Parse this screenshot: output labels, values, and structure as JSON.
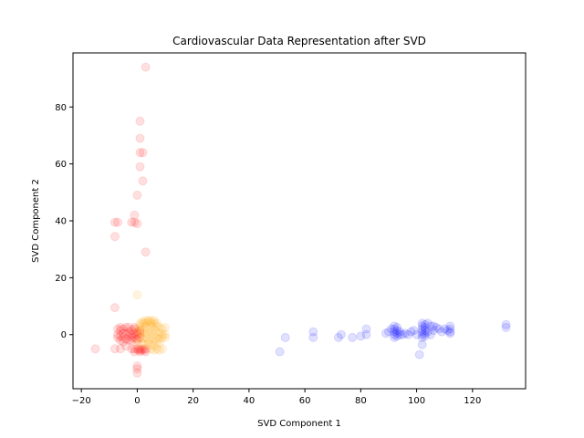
{
  "chart_data": {
    "type": "scatter",
    "title": "Cardiovascular Data Representation after SVD",
    "xlabel": "SVD Component 1",
    "ylabel": "SVD Component 2",
    "xlim": [
      -23,
      139
    ],
    "ylim": [
      -19,
      99
    ],
    "xticks": [
      -20,
      0,
      20,
      40,
      60,
      80,
      100,
      120
    ],
    "yticks": [
      0,
      20,
      40,
      60,
      80
    ],
    "grid": false,
    "series": [
      {
        "color": "#ff0000",
        "alpha": 0.12,
        "points": [
          [
            3,
            94
          ],
          [
            1,
            75
          ],
          [
            1,
            69
          ],
          [
            1,
            64
          ],
          [
            2,
            64
          ],
          [
            1,
            59
          ],
          [
            2,
            54
          ],
          [
            0,
            49
          ],
          [
            -1,
            42
          ],
          [
            -8,
            39.5
          ],
          [
            -7,
            39.5
          ],
          [
            -2,
            39.5
          ],
          [
            -1,
            39.5
          ],
          [
            0,
            39
          ],
          [
            -8,
            34.5
          ],
          [
            3,
            29
          ],
          [
            -8,
            9.5
          ],
          [
            -15,
            -5
          ],
          [
            -8,
            -5
          ],
          [
            0,
            -11
          ],
          [
            0,
            -12
          ],
          [
            0,
            -13.5
          ],
          [
            -6,
            -5
          ],
          [
            -4,
            -4
          ],
          [
            -7,
            2
          ],
          [
            -7,
            0
          ],
          [
            -7,
            -1
          ],
          [
            -6,
            1.5
          ],
          [
            -6,
            -0.5
          ],
          [
            -5,
            2
          ],
          [
            -5,
            -1
          ],
          [
            -4,
            0.5
          ],
          [
            -4,
            -1.5
          ],
          [
            -3,
            1
          ],
          [
            -3,
            -0.5
          ],
          [
            -3,
            2.5
          ],
          [
            -2,
            0
          ],
          [
            -2,
            -1
          ],
          [
            -2,
            1.5
          ],
          [
            -1,
            0.5
          ],
          [
            -1,
            -1
          ],
          [
            -1,
            2
          ],
          [
            0,
            0
          ],
          [
            0,
            1
          ],
          [
            0,
            -1.5
          ],
          [
            1,
            0.5
          ],
          [
            1,
            -1
          ],
          [
            -6,
            -2
          ],
          [
            -5,
            -2.5
          ],
          [
            -4,
            2.5
          ],
          [
            -2,
            -2
          ],
          [
            -1,
            2.5
          ],
          [
            0,
            -2
          ],
          [
            1,
            1.5
          ],
          [
            -3,
            -2
          ],
          [
            -5,
            0.5
          ],
          [
            -6,
            2.5
          ],
          [
            -2,
            -5
          ],
          [
            -1,
            -5
          ],
          [
            0,
            -5
          ],
          [
            0.5,
            -5.5
          ],
          [
            1,
            -5
          ],
          [
            1.5,
            -5.5
          ],
          [
            2,
            -5
          ],
          [
            2.5,
            -5.5
          ],
          [
            3,
            -5
          ],
          [
            -1,
            -6
          ],
          [
            1,
            -6
          ],
          [
            3,
            -6
          ]
        ]
      },
      {
        "color": "#ffa500",
        "alpha": 0.12,
        "points": [
          [
            0,
            14
          ],
          [
            2,
            4
          ],
          [
            3,
            5
          ],
          [
            4,
            4.5
          ],
          [
            5,
            5
          ],
          [
            6,
            4
          ],
          [
            7,
            3
          ],
          [
            8,
            2.5
          ],
          [
            9,
            2
          ],
          [
            10,
            2.5
          ],
          [
            1,
            3
          ],
          [
            2,
            2
          ],
          [
            3,
            3
          ],
          [
            4,
            2
          ],
          [
            5,
            3
          ],
          [
            6,
            2
          ],
          [
            7,
            1
          ],
          [
            8,
            0.5
          ],
          [
            9,
            0
          ],
          [
            1,
            1
          ],
          [
            2,
            0.5
          ],
          [
            3,
            1
          ],
          [
            4,
            0
          ],
          [
            5,
            1
          ],
          [
            6,
            0
          ],
          [
            7,
            -1
          ],
          [
            8,
            -1.5
          ],
          [
            9,
            -1
          ],
          [
            1,
            -1
          ],
          [
            2,
            -1.5
          ],
          [
            3,
            -1
          ],
          [
            4,
            -2
          ],
          [
            5,
            -1
          ],
          [
            6,
            -2
          ],
          [
            7,
            -2.5
          ],
          [
            8,
            -3
          ],
          [
            2,
            -3
          ],
          [
            3,
            -3.5
          ],
          [
            4,
            -3
          ],
          [
            5,
            -3.5
          ],
          [
            6,
            -4
          ],
          [
            7,
            -5
          ],
          [
            8,
            -5.5
          ],
          [
            9,
            -5
          ],
          [
            10,
            0
          ],
          [
            10,
            -1
          ],
          [
            2,
            4.5
          ],
          [
            4,
            5
          ],
          [
            6,
            5
          ],
          [
            3,
            4
          ],
          [
            5,
            4
          ],
          [
            7,
            4
          ],
          [
            1,
            4
          ],
          [
            0,
            2
          ],
          [
            0,
            -3
          ],
          [
            6,
            -5.5
          ],
          [
            5,
            -5
          ]
        ]
      },
      {
        "color": "#0000ff",
        "alpha": 0.12,
        "points": [
          [
            51,
            -6
          ],
          [
            53,
            -1
          ],
          [
            63,
            1
          ],
          [
            63,
            -1
          ],
          [
            72,
            -1
          ],
          [
            73,
            0
          ],
          [
            77,
            -1
          ],
          [
            80,
            -0.5
          ],
          [
            82,
            2
          ],
          [
            82,
            0
          ],
          [
            89,
            0.5
          ],
          [
            90,
            1
          ],
          [
            91,
            2
          ],
          [
            92,
            3
          ],
          [
            92,
            2
          ],
          [
            92,
            1
          ],
          [
            92,
            0
          ],
          [
            92,
            -1
          ],
          [
            93,
            2.5
          ],
          [
            93,
            1.5
          ],
          [
            93,
            0.5
          ],
          [
            93,
            -0.5
          ],
          [
            94,
            1
          ],
          [
            94,
            0
          ],
          [
            95,
            0
          ],
          [
            96,
            0.5
          ],
          [
            97,
            0
          ],
          [
            98,
            1
          ],
          [
            99,
            1.5
          ],
          [
            100,
            0
          ],
          [
            101,
            -7
          ],
          [
            102,
            -3.5
          ],
          [
            102,
            4
          ],
          [
            102,
            3
          ],
          [
            102,
            2
          ],
          [
            102,
            1
          ],
          [
            102,
            0
          ],
          [
            102,
            -1
          ],
          [
            103,
            3.5
          ],
          [
            103,
            2.5
          ],
          [
            103,
            1.5
          ],
          [
            103,
            0.5
          ],
          [
            103,
            -0.5
          ],
          [
            104,
            4
          ],
          [
            104,
            1
          ],
          [
            105,
            3
          ],
          [
            105,
            0
          ],
          [
            106,
            3
          ],
          [
            106,
            1.5
          ],
          [
            108,
            2
          ],
          [
            109,
            1
          ],
          [
            110,
            2
          ],
          [
            112,
            3
          ],
          [
            112,
            2
          ],
          [
            112,
            1
          ],
          [
            112,
            0.5
          ],
          [
            132,
            3.5
          ],
          [
            132,
            2.5
          ],
          [
            111,
            1.5
          ],
          [
            107,
            2.5
          ]
        ]
      }
    ]
  }
}
